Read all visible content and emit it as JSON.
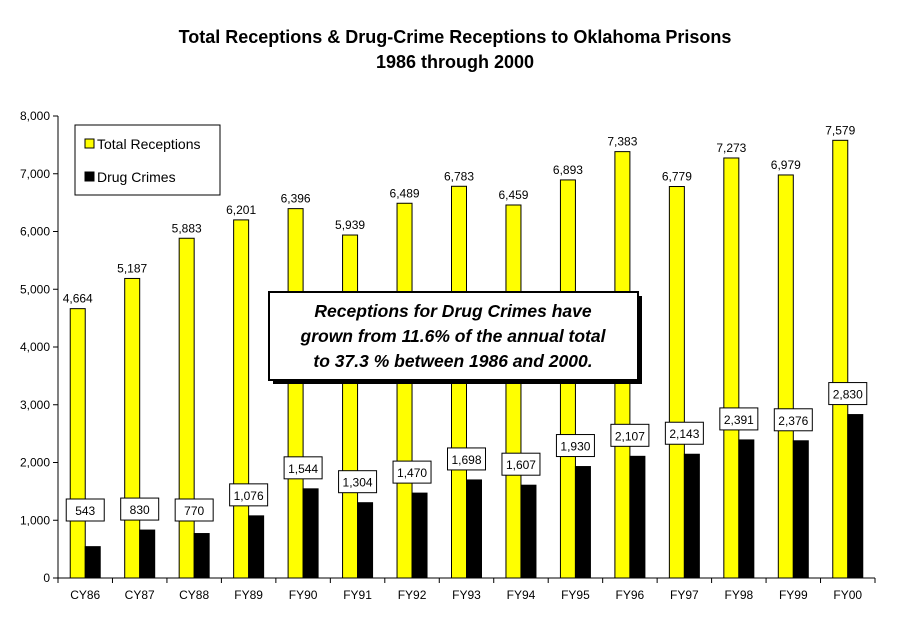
{
  "chart_data": {
    "type": "bar",
    "title": "Total Receptions & Drug-Crime Receptions to Oklahoma Prisons",
    "subtitle": "1986 through 2000",
    "categories": [
      "CY86",
      "CY87",
      "CY88",
      "FY89",
      "FY90",
      "FY91",
      "FY92",
      "FY93",
      "FY94",
      "FY95",
      "FY96",
      "FY97",
      "FY98",
      "FY99",
      "FY00"
    ],
    "series": [
      {
        "name": "Total Receptions",
        "color": "#ffff00",
        "values": [
          4664,
          5187,
          5883,
          6201,
          6396,
          5939,
          6489,
          6783,
          6459,
          6893,
          7383,
          6779,
          7273,
          6979,
          7579
        ],
        "labels": [
          "4,664",
          "5,187",
          "5,883",
          "6,201",
          "6,396",
          "5,939",
          "6,489",
          "6,783",
          "6,459",
          "6,893",
          "7,383",
          "6,779",
          "7,273",
          "6,979",
          "7,579"
        ]
      },
      {
        "name": "Drug Crimes",
        "color": "#000000",
        "values": [
          543,
          830,
          770,
          1076,
          1544,
          1304,
          1470,
          1698,
          1607,
          1930,
          2107,
          2143,
          2391,
          2376,
          2830
        ],
        "labels": [
          "543",
          "830",
          "770",
          "1,076",
          "1,544",
          "1,304",
          "1,470",
          "1,698",
          "1,607",
          "1,930",
          "2,107",
          "2,143",
          "2,391",
          "2,376",
          "2,830"
        ]
      }
    ],
    "ylim": [
      0,
      8000
    ],
    "yticks": [
      0,
      1000,
      2000,
      3000,
      4000,
      5000,
      6000,
      7000,
      8000
    ],
    "ytick_labels": [
      "0",
      "1,000",
      "2,000",
      "3,000",
      "4,000",
      "5,000",
      "6,000",
      "7,000",
      "8,000"
    ],
    "grid": false,
    "legend": "top-left",
    "annotation": [
      "Receptions for Drug Crimes have",
      "grown from 11.6% of the annual total",
      "to 37.3 %  between 1986 and 2000."
    ]
  }
}
